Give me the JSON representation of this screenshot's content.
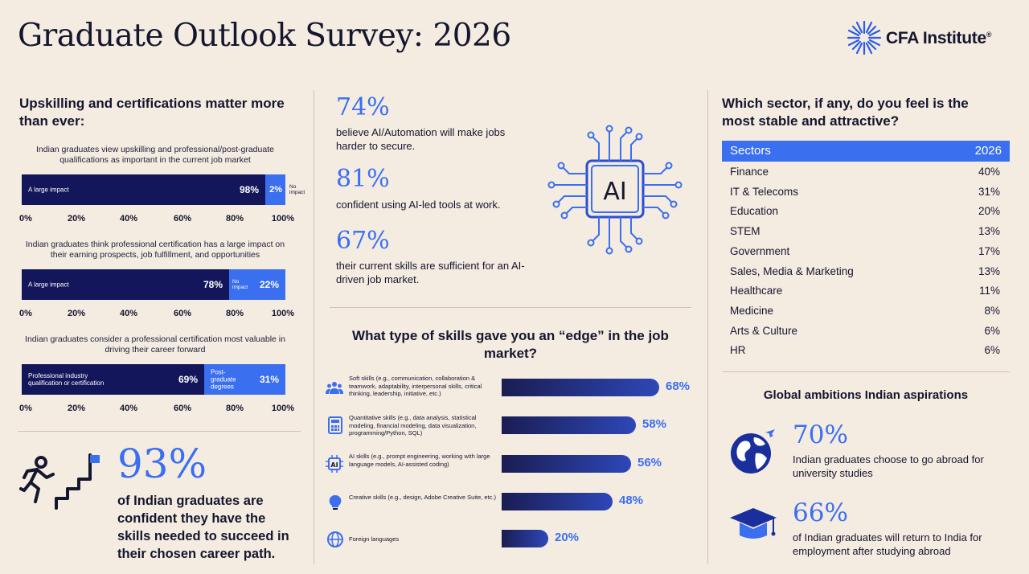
{
  "header": {
    "title": "Graduate Outlook Survey: 2026",
    "logo_text": "CFA Institute",
    "logo_mark": "®"
  },
  "left": {
    "heading": "Upskilling and certifications matter more than ever:",
    "ticks": [
      "0%",
      "20%",
      "40%",
      "60%",
      "80%",
      "100%"
    ],
    "chart1": {
      "caption": "Indian graduates view upskilling and professional/post-graduate qualifications as important in the current job market",
      "seg1_label": "A large impact",
      "seg1_value": 98,
      "seg1_pct": "98%",
      "seg2_pct": "2%",
      "seg2_value": 2,
      "seg2_label": "No impact"
    },
    "chart2": {
      "caption": "Indian graduates think professional certification has a large impact on their earning prospects, job fulfillment, and opportunities",
      "seg1_label": "A large impact",
      "seg1_value": 78,
      "seg1_pct": "78%",
      "seg2_label": "No impact",
      "seg2_value": 22,
      "seg2_pct": "22%"
    },
    "chart3": {
      "caption": "Indian graduates consider a professional certification most valuable in driving their career forward",
      "seg1_label": "Professional industry qualification or certification",
      "seg1_value": 69,
      "seg1_pct": "69%",
      "seg2_label": "Post-graduate degrees",
      "seg2_value": 31,
      "seg2_pct": "31%"
    },
    "confident": {
      "pct": "93%",
      "text": "of Indian graduates are confident they have the skills needed to succeed in their chosen career path."
    }
  },
  "middle": {
    "stats": [
      {
        "pct": "74%",
        "text": "believe AI/Automation will make jobs harder to secure."
      },
      {
        "pct": "81%",
        "text": "confident using AI-led tools at work."
      },
      {
        "pct": "67%",
        "text": "their current skills are sufficient for an AI-driven job market."
      }
    ],
    "ai_label": "AI",
    "skills_heading": "What type of skills gave you an “edge” in the job market?",
    "skills": [
      {
        "icon": "people-icon",
        "text": "Soft skills (e.g., communication, collaboration & teamwork, adaptability, interpersonal skills, critical thinking, leadership, initiative, etc.)",
        "value": 68,
        "pct": "68%"
      },
      {
        "icon": "calculator-icon",
        "text": "Quantitative skills (e.g., data analysis, statistical modeling, financial modeling, data visualization, programming/Python, SQL)",
        "value": 58,
        "pct": "58%"
      },
      {
        "icon": "ai-chip-icon",
        "text": "AI skills (e.g., prompt engineering, working with large language models, AI-assisted coding)",
        "value": 56,
        "pct": "56%"
      },
      {
        "icon": "lightbulb-icon",
        "text": "Creative skills (e.g., design, Adobe Creative Suite, etc.)",
        "value": 48,
        "pct": "48%"
      },
      {
        "icon": "globe-icon",
        "text": "Foreign languages",
        "value": 20,
        "pct": "20%"
      }
    ]
  },
  "right": {
    "sector_heading": "Which sector, if any, do you feel is the most stable and attractive?",
    "table_header": {
      "col1": "Sectors",
      "col2": "2026"
    },
    "rows": [
      {
        "sector": "Finance",
        "pct": "40%"
      },
      {
        "sector": "IT & Telecoms",
        "pct": "31%"
      },
      {
        "sector": "Education",
        "pct": "20%"
      },
      {
        "sector": "STEM",
        "pct": "13%"
      },
      {
        "sector": "Government",
        "pct": "17%"
      },
      {
        "sector": "Sales, Media & Marketing",
        "pct": "13%"
      },
      {
        "sector": "Healthcare",
        "pct": "11%"
      },
      {
        "sector": "Medicine",
        "pct": "8%"
      },
      {
        "sector": "Arts & Culture",
        "pct": "6%"
      },
      {
        "sector": "HR",
        "pct": "6%"
      }
    ],
    "global_heading": "Global ambitions Indian aspirations",
    "abroad": {
      "pct": "70%",
      "text": "Indian graduates choose to go abroad for university studies"
    },
    "return": {
      "pct": "66%",
      "text": "of Indian graduates will return to India for employment after studying abroad"
    }
  },
  "colors": {
    "navy": "#14162e",
    "dark_bar": "#13165a",
    "accent_blue": "#3a6ff0",
    "background": "#f4ebe1"
  }
}
